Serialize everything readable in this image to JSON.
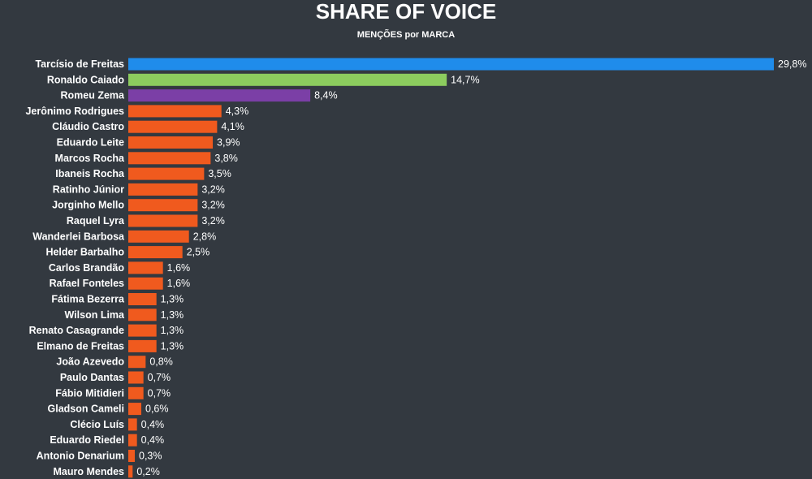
{
  "chart_data": {
    "type": "bar",
    "orientation": "horizontal",
    "title": "SHARE OF VOICE",
    "subtitle": "MENÇÕES por MARCA",
    "xlabel": "",
    "ylabel": "",
    "grid": false,
    "legend": "none",
    "xlim": [
      0,
      29.8
    ],
    "categories": [
      "Tarcísio de Freitas",
      "Ronaldo Caiado",
      "Romeu Zema",
      "Jerônimo Rodrigues",
      "Cláudio Castro",
      "Eduardo Leite",
      "Marcos Rocha",
      "Ibaneis Rocha",
      "Ratinho Júnior",
      "Jorginho Mello",
      "Raquel Lyra",
      "Wanderlei Barbosa",
      "Helder Barbalho",
      "Carlos Brandão",
      "Rafael Fonteles",
      "Fátima Bezerra",
      "Wilson Lima",
      "Renato Casagrande",
      "Elmano de Freitas",
      "João Azevedo",
      "Paulo Dantas",
      "Fábio Mitidieri",
      "Gladson Cameli",
      "Clécio Luís",
      "Eduardo Riedel",
      "Antonio Denarium",
      "Mauro Mendes"
    ],
    "values": [
      29.8,
      14.7,
      8.4,
      4.3,
      4.1,
      3.9,
      3.8,
      3.5,
      3.2,
      3.2,
      3.2,
      2.8,
      2.5,
      1.6,
      1.6,
      1.3,
      1.3,
      1.3,
      1.3,
      0.8,
      0.7,
      0.7,
      0.6,
      0.4,
      0.4,
      0.3,
      0.2
    ],
    "value_labels": [
      "29,8%",
      "14,7%",
      "8,4%",
      "4,3%",
      "4,1%",
      "3,9%",
      "3,8%",
      "3,5%",
      "3,2%",
      "3,2%",
      "3,2%",
      "2,8%",
      "2,5%",
      "1,6%",
      "1,6%",
      "1,3%",
      "1,3%",
      "1,3%",
      "1,3%",
      "0,8%",
      "0,7%",
      "0,7%",
      "0,6%",
      "0,4%",
      "0,4%",
      "0,3%",
      "0,2%"
    ],
    "bar_colors": [
      "#1f8ceb",
      "#8ccc5e",
      "#7b3fa6",
      "#f05a1e",
      "#f05a1e",
      "#f05a1e",
      "#f05a1e",
      "#f05a1e",
      "#f05a1e",
      "#f05a1e",
      "#f05a1e",
      "#f05a1e",
      "#f05a1e",
      "#f05a1e",
      "#f05a1e",
      "#f05a1e",
      "#f05a1e",
      "#f05a1e",
      "#f05a1e",
      "#f05a1e",
      "#f05a1e",
      "#f05a1e",
      "#f05a1e",
      "#f05a1e",
      "#f05a1e",
      "#f05a1e",
      "#f05a1e"
    ]
  },
  "colors": {
    "background": "#333940",
    "text": "#ffffff"
  }
}
